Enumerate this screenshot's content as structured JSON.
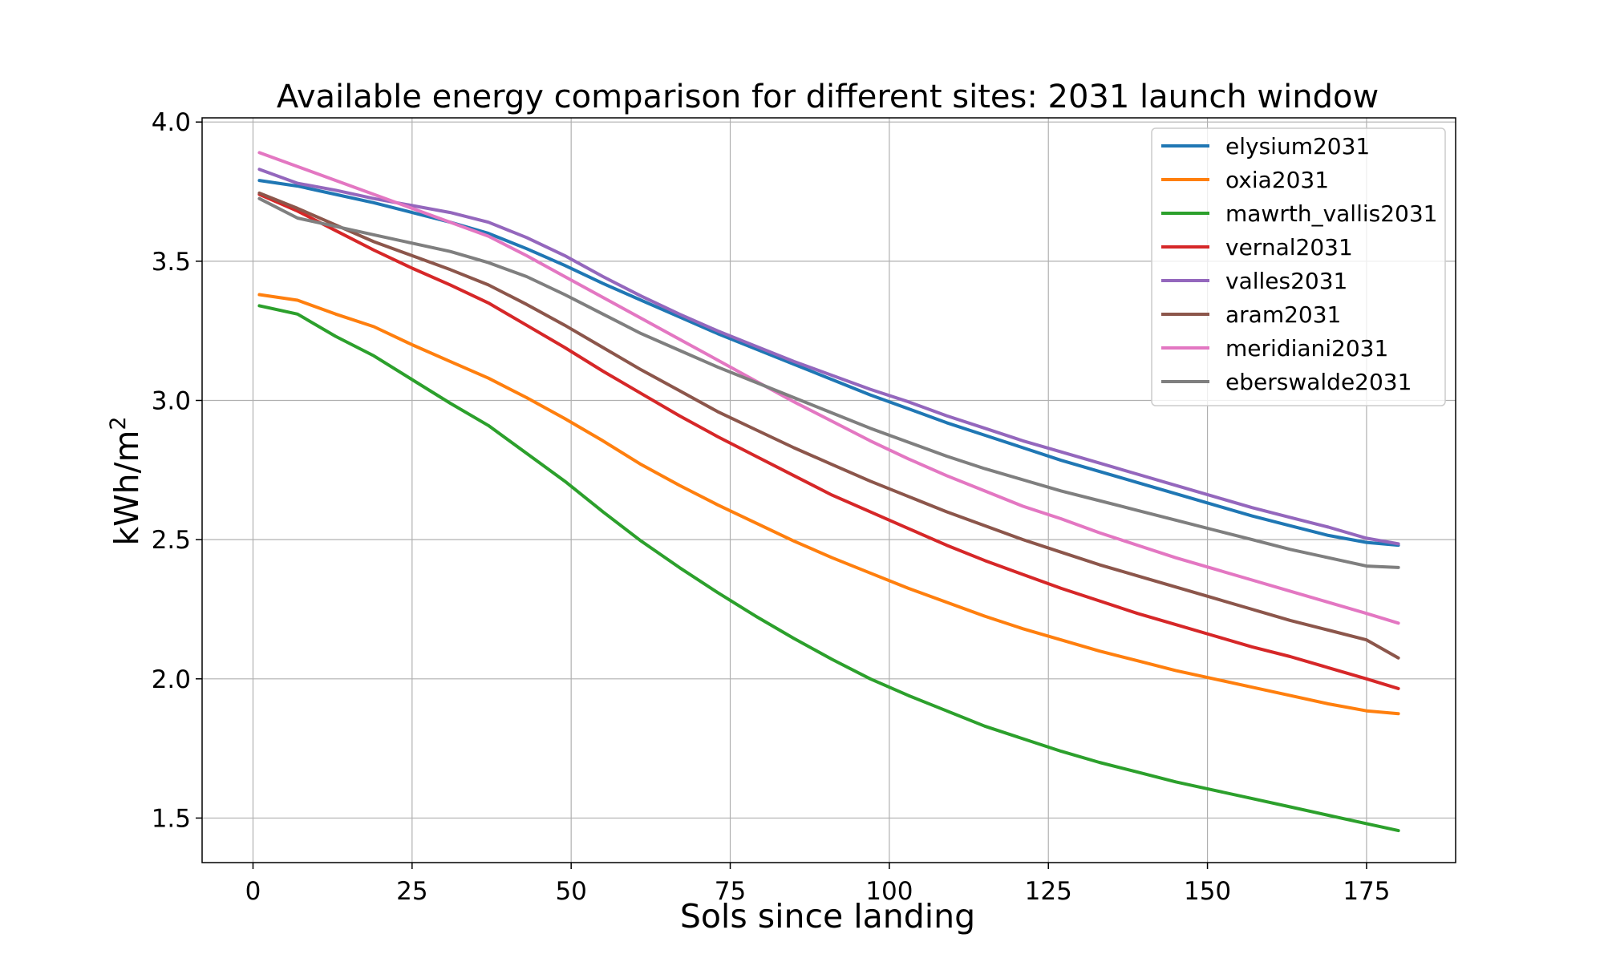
{
  "chart_data": {
    "type": "line",
    "title": "Available energy comparison for different sites: 2031 launch window",
    "xlabel": "Sols since landing",
    "ylabel": "kWh/m",
    "ylabel_superscript": "2",
    "xlim": [
      -8,
      189
    ],
    "ylim": [
      1.34,
      4.015
    ],
    "xticks": [
      "0",
      "25",
      "50",
      "75",
      "100",
      "125",
      "150",
      "175"
    ],
    "yticks": [
      "1.5",
      "2.0",
      "2.5",
      "3.0",
      "3.5",
      "4.0"
    ],
    "grid": true,
    "legend_position": "top-right",
    "x": [
      1,
      7,
      13,
      19,
      25,
      31,
      37,
      43,
      49,
      55,
      61,
      67,
      73,
      79,
      85,
      91,
      97,
      103,
      109,
      115,
      121,
      127,
      133,
      139,
      145,
      151,
      157,
      163,
      169,
      175,
      180
    ],
    "series": [
      {
        "name": "elysium2031",
        "color": "#1f77b4",
        "values": [
          3.79,
          3.77,
          3.74,
          3.71,
          3.675,
          3.64,
          3.6,
          3.545,
          3.485,
          3.42,
          3.36,
          3.3,
          3.24,
          3.185,
          3.13,
          3.075,
          3.02,
          2.97,
          2.92,
          2.875,
          2.83,
          2.785,
          2.745,
          2.705,
          2.665,
          2.625,
          2.585,
          2.55,
          2.515,
          2.49,
          2.48
        ]
      },
      {
        "name": "oxia2031",
        "color": "#ff7f0e",
        "values": [
          3.38,
          3.36,
          3.31,
          3.265,
          3.2,
          3.14,
          3.08,
          3.01,
          2.935,
          2.855,
          2.77,
          2.695,
          2.625,
          2.56,
          2.495,
          2.435,
          2.38,
          2.325,
          2.275,
          2.225,
          2.18,
          2.14,
          2.1,
          2.065,
          2.03,
          2.0,
          1.97,
          1.94,
          1.91,
          1.885,
          1.875
        ]
      },
      {
        "name": "mawrth_vallis2031",
        "color": "#2ca02c",
        "values": [
          3.34,
          3.31,
          3.23,
          3.16,
          3.075,
          2.99,
          2.91,
          2.81,
          2.71,
          2.6,
          2.495,
          2.4,
          2.31,
          2.225,
          2.145,
          2.07,
          2.0,
          1.94,
          1.885,
          1.83,
          1.785,
          1.74,
          1.7,
          1.665,
          1.63,
          1.6,
          1.57,
          1.54,
          1.51,
          1.48,
          1.455
        ]
      },
      {
        "name": "vernal2031",
        "color": "#d62728",
        "values": [
          3.74,
          3.68,
          3.61,
          3.54,
          3.475,
          3.415,
          3.35,
          3.27,
          3.19,
          3.105,
          3.025,
          2.945,
          2.87,
          2.8,
          2.73,
          2.66,
          2.6,
          2.54,
          2.48,
          2.425,
          2.375,
          2.325,
          2.28,
          2.235,
          2.195,
          2.155,
          2.115,
          2.08,
          2.04,
          2.0,
          1.965
        ]
      },
      {
        "name": "valles2031",
        "color": "#9467bd",
        "values": [
          3.83,
          3.78,
          3.755,
          3.725,
          3.7,
          3.675,
          3.64,
          3.585,
          3.52,
          3.445,
          3.375,
          3.31,
          3.25,
          3.195,
          3.14,
          3.09,
          3.04,
          2.995,
          2.945,
          2.9,
          2.855,
          2.815,
          2.775,
          2.735,
          2.695,
          2.655,
          2.615,
          2.58,
          2.545,
          2.505,
          2.485
        ]
      },
      {
        "name": "aram2031",
        "color": "#8c564b",
        "values": [
          3.745,
          3.69,
          3.63,
          3.57,
          3.52,
          3.47,
          3.415,
          3.345,
          3.27,
          3.19,
          3.11,
          3.035,
          2.96,
          2.895,
          2.83,
          2.77,
          2.71,
          2.655,
          2.6,
          2.55,
          2.5,
          2.455,
          2.41,
          2.37,
          2.33,
          2.29,
          2.25,
          2.21,
          2.175,
          2.14,
          2.075
        ]
      },
      {
        "name": "meridiani2031",
        "color": "#e377c2",
        "values": [
          3.89,
          3.84,
          3.79,
          3.74,
          3.69,
          3.64,
          3.59,
          3.52,
          3.445,
          3.37,
          3.295,
          3.22,
          3.145,
          3.07,
          2.995,
          2.925,
          2.855,
          2.79,
          2.73,
          2.675,
          2.62,
          2.575,
          2.525,
          2.48,
          2.435,
          2.395,
          2.355,
          2.315,
          2.275,
          2.235,
          2.2
        ]
      },
      {
        "name": "eberswalde2031",
        "color": "#7f7f7f",
        "values": [
          3.725,
          3.655,
          3.625,
          3.595,
          3.565,
          3.535,
          3.495,
          3.445,
          3.38,
          3.31,
          3.24,
          3.18,
          3.12,
          3.065,
          3.01,
          2.955,
          2.9,
          2.85,
          2.8,
          2.755,
          2.715,
          2.675,
          2.64,
          2.605,
          2.57,
          2.535,
          2.5,
          2.465,
          2.435,
          2.405,
          2.4
        ]
      }
    ]
  }
}
